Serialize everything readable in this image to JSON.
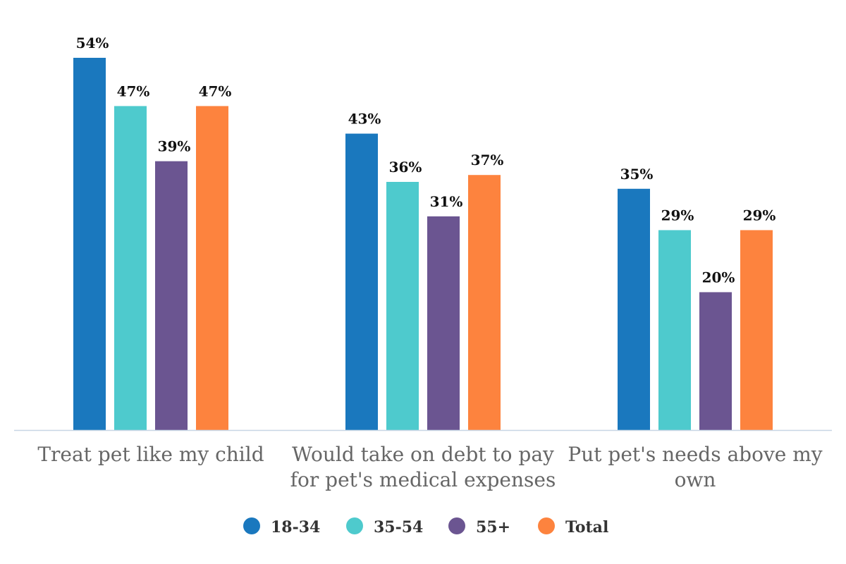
{
  "chart_data": {
    "type": "bar",
    "categories": [
      [
        "Treat pet like my child"
      ],
      [
        "Would take on debt to pay",
        "for pet's medical expenses"
      ],
      [
        "Put pet's needs above my",
        "own"
      ]
    ],
    "series": [
      {
        "name": "18-34",
        "color": "#1a78be",
        "values": [
          54,
          43,
          35
        ],
        "labels": [
          "54%",
          "43%",
          "35%"
        ]
      },
      {
        "name": "35-54",
        "color": "#4ecacd",
        "values": [
          47,
          36,
          29
        ],
        "labels": [
          "47%",
          "36%",
          "29%"
        ]
      },
      {
        "name": "55+",
        "color": "#6b5591",
        "values": [
          39,
          31,
          20
        ],
        "labels": [
          "39%",
          "31%",
          "20%"
        ]
      },
      {
        "name": "Total",
        "color": "#fd833e",
        "values": [
          47,
          37,
          29
        ],
        "labels": [
          "47%",
          "37%",
          "29%"
        ]
      }
    ],
    "ylim": [
      0,
      56
    ],
    "grid": false,
    "legend_position": "bottom-center",
    "axis_color": "#c8d6e5"
  }
}
